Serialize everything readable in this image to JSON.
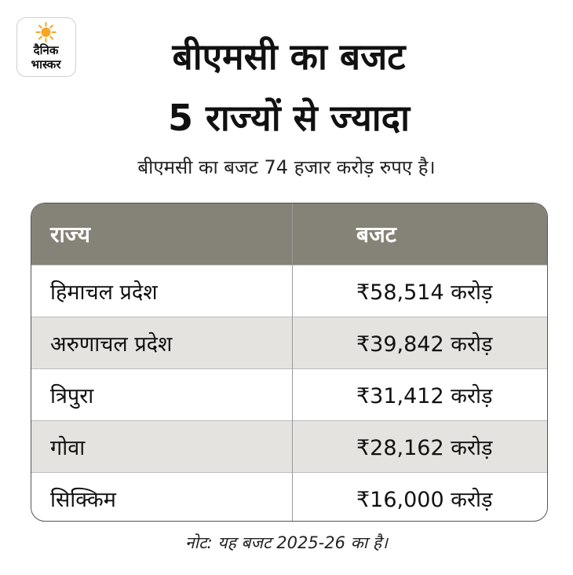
{
  "logo": {
    "line1": "दैनिक",
    "line2": "भास्कर",
    "sun_color": "#f5a623"
  },
  "title": {
    "line1": "बीएमसी का बजट",
    "line2": "5 राज्यों से ज्यादा"
  },
  "subtitle": "बीएमसी का बजट 74 हजार करोड़ रुपए है।",
  "table": {
    "headers": [
      "राज्य",
      "बजट"
    ],
    "rows": [
      [
        "हिमाचल प्रदेश",
        "₹58,514 करोड़"
      ],
      [
        "अरुणाचल प्रदेश",
        "₹39,842 करोड़"
      ],
      [
        "त्रिपुरा",
        "₹31,412 करोड़"
      ],
      [
        "गोवा",
        "₹28,162 करोड़"
      ],
      [
        "सिक्किम",
        "₹16,000 करोड़"
      ]
    ],
    "header_color": "#858277",
    "alt_row_color": "#e4e3df"
  },
  "note": "नोट: यह बजट 2025-26 का है।"
}
